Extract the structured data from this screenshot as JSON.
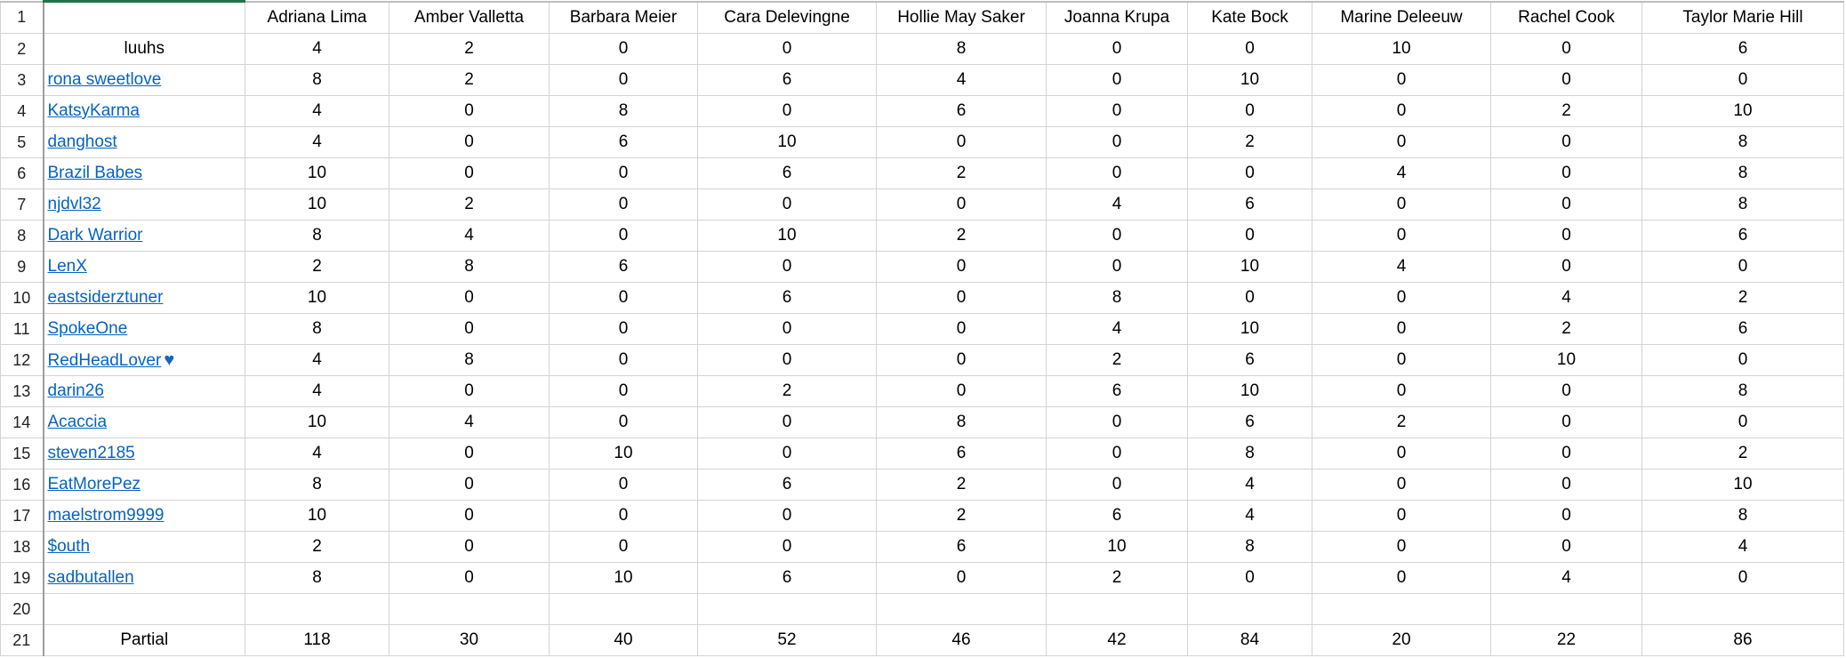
{
  "sheet": {
    "columns": [
      "",
      "Adriana Lima",
      "Amber Valletta",
      "Barbara Meier",
      "Cara Delevingne",
      "Hollie May Saker",
      "Joanna Krupa",
      "Kate Bock",
      "Marine Deleeuw",
      "Rachel Cook",
      "Taylor Marie Hill"
    ],
    "rows": [
      {
        "name": "luuhs",
        "link": false,
        "values": [
          4,
          2,
          0,
          0,
          8,
          0,
          0,
          10,
          0,
          6
        ]
      },
      {
        "name": "rona sweetlove",
        "link": true,
        "values": [
          8,
          2,
          0,
          6,
          4,
          0,
          10,
          0,
          0,
          0
        ]
      },
      {
        "name": "KatsyKarma",
        "link": true,
        "values": [
          4,
          0,
          8,
          0,
          6,
          0,
          0,
          0,
          2,
          10
        ]
      },
      {
        "name": "danghost",
        "link": true,
        "values": [
          4,
          0,
          6,
          10,
          0,
          0,
          2,
          0,
          0,
          8
        ]
      },
      {
        "name": "Brazil Babes",
        "link": true,
        "values": [
          10,
          0,
          0,
          6,
          2,
          0,
          0,
          4,
          0,
          8
        ]
      },
      {
        "name": "njdvl32",
        "link": true,
        "values": [
          10,
          2,
          0,
          0,
          0,
          4,
          6,
          0,
          0,
          8
        ]
      },
      {
        "name": "Dark Warrior",
        "link": true,
        "values": [
          8,
          4,
          0,
          10,
          2,
          0,
          0,
          0,
          0,
          6
        ]
      },
      {
        "name": "LenX",
        "link": true,
        "values": [
          2,
          8,
          6,
          0,
          0,
          0,
          10,
          4,
          0,
          0
        ]
      },
      {
        "name": "eastsiderztuner",
        "link": true,
        "values": [
          10,
          0,
          0,
          6,
          0,
          8,
          0,
          0,
          4,
          2
        ]
      },
      {
        "name": "SpokeOne",
        "link": true,
        "values": [
          8,
          0,
          0,
          0,
          0,
          4,
          10,
          0,
          2,
          6
        ]
      },
      {
        "name": "RedHeadLover",
        "link": true,
        "icon": "blue-heart-icon",
        "values": [
          4,
          8,
          0,
          0,
          0,
          2,
          6,
          0,
          10,
          0
        ]
      },
      {
        "name": "darin26",
        "link": true,
        "values": [
          4,
          0,
          0,
          2,
          0,
          6,
          10,
          0,
          0,
          8
        ]
      },
      {
        "name": "Acaccia",
        "link": true,
        "values": [
          10,
          4,
          0,
          0,
          8,
          0,
          6,
          2,
          0,
          0
        ]
      },
      {
        "name": "steven2185",
        "link": true,
        "values": [
          4,
          0,
          10,
          0,
          6,
          0,
          8,
          0,
          0,
          2
        ]
      },
      {
        "name": "EatMorePez",
        "link": true,
        "values": [
          8,
          0,
          0,
          6,
          2,
          0,
          4,
          0,
          0,
          10
        ]
      },
      {
        "name": "maelstrom9999",
        "link": true,
        "values": [
          10,
          0,
          0,
          0,
          2,
          6,
          4,
          0,
          0,
          8
        ]
      },
      {
        "name": "$outh",
        "link": true,
        "values": [
          2,
          0,
          0,
          0,
          6,
          10,
          8,
          0,
          0,
          4
        ]
      },
      {
        "name": "sadbutallen",
        "link": true,
        "values": [
          8,
          0,
          10,
          6,
          0,
          2,
          0,
          0,
          4,
          0
        ]
      }
    ],
    "total": {
      "label": "Partial",
      "values": [
        118,
        30,
        40,
        52,
        46,
        42,
        84,
        20,
        22,
        86
      ]
    },
    "row_numbers": [
      "1",
      "2",
      "3",
      "4",
      "5",
      "6",
      "7",
      "8",
      "9",
      "10",
      "11",
      "12",
      "13",
      "14",
      "15",
      "16",
      "17",
      "18",
      "19",
      "20",
      "21"
    ]
  },
  "colors": {
    "link": "#0563c1",
    "heart": "#1565c0",
    "selection": "#217346"
  }
}
